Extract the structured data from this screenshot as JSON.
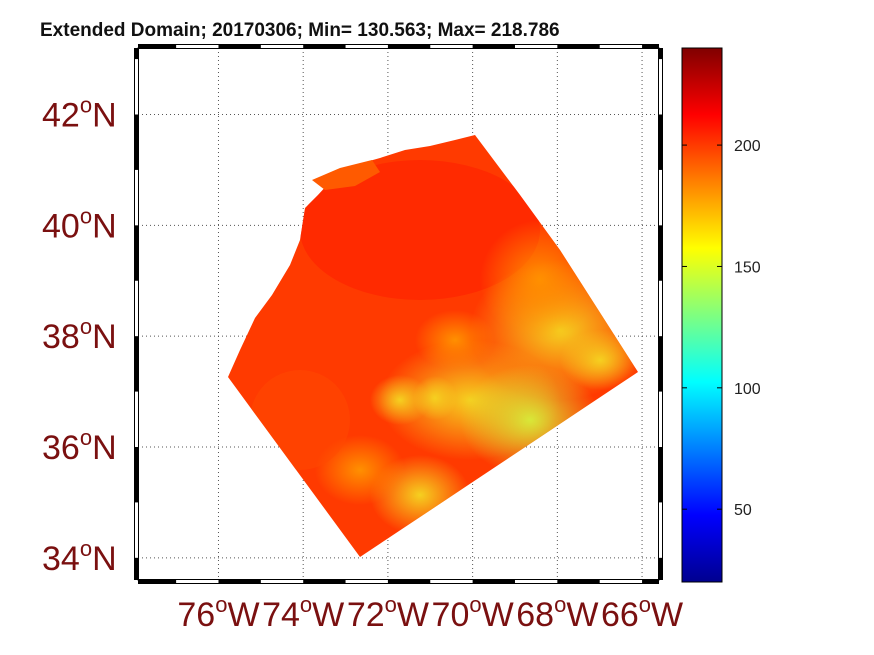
{
  "title": "Extended Domain; 20170306; Min= 130.563; Max= 218.786",
  "map": {
    "lat_labels": [
      "42",
      "40",
      "38",
      "36",
      "34"
    ],
    "lat_suffix": "N",
    "lon_labels": [
      "76",
      "74",
      "72",
      "70",
      "68",
      "66"
    ],
    "lon_suffix": "W",
    "degree_symbol": "o",
    "lat_range": [
      33.6,
      43.2
    ],
    "lon_range": [
      -77.9,
      -65.6
    ]
  },
  "colorbar": {
    "ticks": [
      "50",
      "100",
      "150",
      "200"
    ],
    "range": [
      20,
      240
    ]
  },
  "colors": {
    "label": "#7a1010",
    "field_dominant": "#ff3a00",
    "field_low": "#f0f000"
  }
}
